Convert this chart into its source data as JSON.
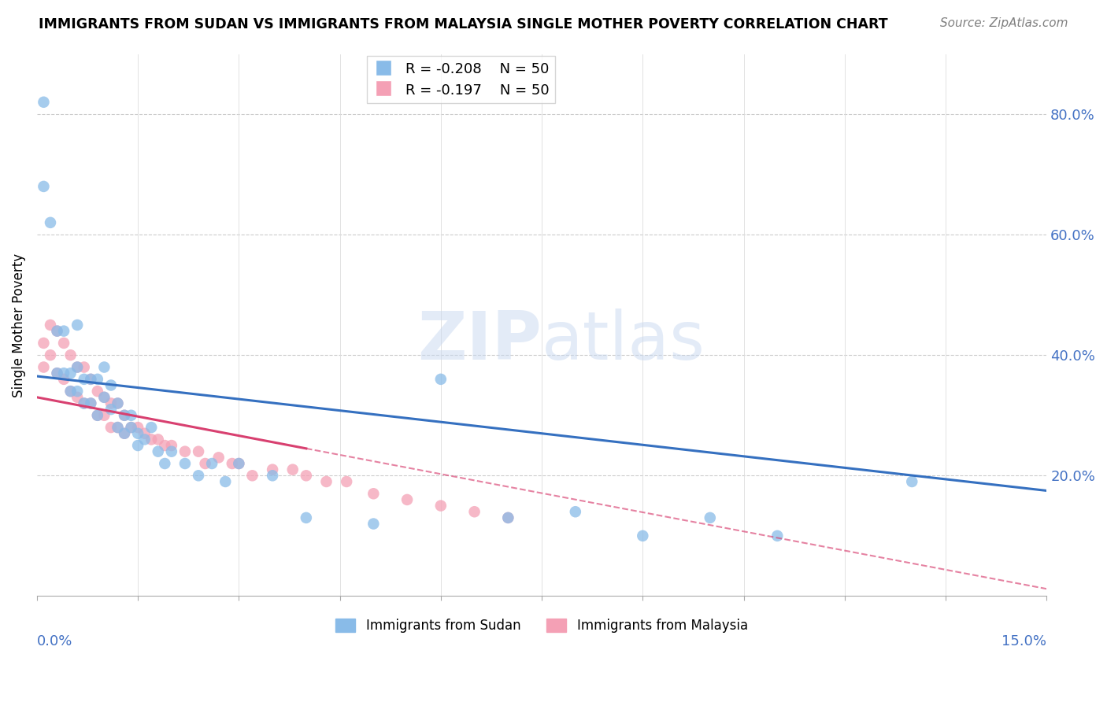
{
  "title": "IMMIGRANTS FROM SUDAN VS IMMIGRANTS FROM MALAYSIA SINGLE MOTHER POVERTY CORRELATION CHART",
  "source": "Source: ZipAtlas.com",
  "ylabel": "Single Mother Poverty",
  "y_tick_values": [
    0.8,
    0.6,
    0.4,
    0.2
  ],
  "xlim": [
    0.0,
    0.15
  ],
  "ylim": [
    0.0,
    0.9
  ],
  "legend_r_sudan": "R = -0.208",
  "legend_n_sudan": "N = 50",
  "legend_r_malaysia": "R = -0.197",
  "legend_n_malaysia": "N = 50",
  "color_sudan": "#89BBE8",
  "color_malaysia": "#F4A0B5",
  "trendline_sudan_color": "#3570C0",
  "trendline_malaysia_color": "#D84070",
  "sudan_points_x": [
    0.001,
    0.001,
    0.002,
    0.003,
    0.003,
    0.004,
    0.004,
    0.005,
    0.005,
    0.006,
    0.006,
    0.006,
    0.007,
    0.007,
    0.008,
    0.008,
    0.009,
    0.009,
    0.01,
    0.01,
    0.011,
    0.011,
    0.012,
    0.012,
    0.013,
    0.013,
    0.014,
    0.014,
    0.015,
    0.015,
    0.016,
    0.017,
    0.018,
    0.019,
    0.02,
    0.022,
    0.024,
    0.026,
    0.028,
    0.03,
    0.035,
    0.04,
    0.05,
    0.06,
    0.07,
    0.08,
    0.09,
    0.1,
    0.11,
    0.13
  ],
  "sudan_points_y": [
    0.82,
    0.68,
    0.62,
    0.44,
    0.37,
    0.44,
    0.37,
    0.37,
    0.34,
    0.45,
    0.38,
    0.34,
    0.36,
    0.32,
    0.36,
    0.32,
    0.36,
    0.3,
    0.38,
    0.33,
    0.35,
    0.31,
    0.32,
    0.28,
    0.3,
    0.27,
    0.3,
    0.28,
    0.27,
    0.25,
    0.26,
    0.28,
    0.24,
    0.22,
    0.24,
    0.22,
    0.2,
    0.22,
    0.19,
    0.22,
    0.2,
    0.13,
    0.12,
    0.36,
    0.13,
    0.14,
    0.1,
    0.13,
    0.1,
    0.19
  ],
  "malaysia_points_x": [
    0.001,
    0.001,
    0.002,
    0.002,
    0.003,
    0.003,
    0.004,
    0.004,
    0.005,
    0.005,
    0.006,
    0.006,
    0.007,
    0.007,
    0.008,
    0.008,
    0.009,
    0.009,
    0.01,
    0.01,
    0.011,
    0.011,
    0.012,
    0.012,
    0.013,
    0.013,
    0.014,
    0.015,
    0.016,
    0.017,
    0.018,
    0.019,
    0.02,
    0.022,
    0.024,
    0.025,
    0.027,
    0.029,
    0.03,
    0.032,
    0.035,
    0.038,
    0.04,
    0.043,
    0.046,
    0.05,
    0.055,
    0.06,
    0.065,
    0.07
  ],
  "malaysia_points_y": [
    0.42,
    0.38,
    0.45,
    0.4,
    0.44,
    0.37,
    0.42,
    0.36,
    0.4,
    0.34,
    0.38,
    0.33,
    0.38,
    0.32,
    0.36,
    0.32,
    0.34,
    0.3,
    0.33,
    0.3,
    0.32,
    0.28,
    0.32,
    0.28,
    0.3,
    0.27,
    0.28,
    0.28,
    0.27,
    0.26,
    0.26,
    0.25,
    0.25,
    0.24,
    0.24,
    0.22,
    0.23,
    0.22,
    0.22,
    0.2,
    0.21,
    0.21,
    0.2,
    0.19,
    0.19,
    0.17,
    0.16,
    0.15,
    0.14,
    0.13
  ],
  "trendline_sudan_x0": 0.0,
  "trendline_sudan_y0": 0.365,
  "trendline_sudan_x1": 0.15,
  "trendline_sudan_y1": 0.175,
  "trendline_malaysia_solid_x0": 0.0,
  "trendline_malaysia_solid_y0": 0.33,
  "trendline_malaysia_solid_x1": 0.04,
  "trendline_malaysia_solid_y1": 0.245,
  "trendline_malaysia_dashed_x0": 0.04,
  "trendline_malaysia_dashed_y0": 0.245,
  "trendline_malaysia_dashed_x1": 0.15,
  "trendline_malaysia_dashed_y1": 0.012
}
